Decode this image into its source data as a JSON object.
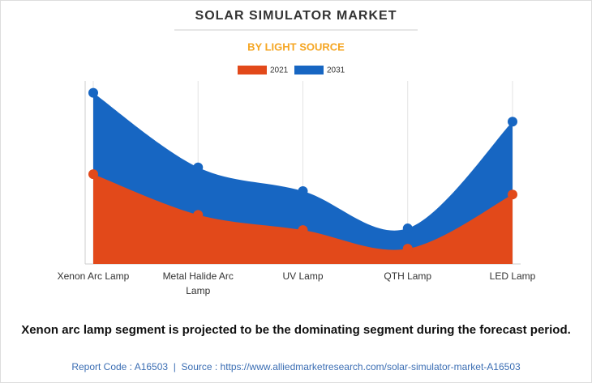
{
  "chart_data": {
    "type": "area",
    "title": "SOLAR SIMULATOR MARKET",
    "subtitle": "BY LIGHT SOURCE",
    "categories": [
      "Xenon Arc Lamp",
      "Metal Halide Arc Lamp",
      "UV Lamp",
      "QTH Lamp",
      "LED Lamp"
    ],
    "series": [
      {
        "name": "2021",
        "color": "#e2491a",
        "values": [
          5.3,
          2.9,
          2.0,
          0.9,
          4.1
        ]
      },
      {
        "name": "2031",
        "color": "#1766c2",
        "values": [
          10.1,
          5.7,
          4.3,
          2.1,
          8.4
        ]
      }
    ],
    "ylim": [
      0,
      10.8
    ],
    "caption": "Xenon arc lamp segment is projected to be the dominating segment during the forecast period.",
    "source": "Report Code : A16503  |  Source : https://www.alliedmarketresearch.com/solar-simulator-market-A16503"
  }
}
